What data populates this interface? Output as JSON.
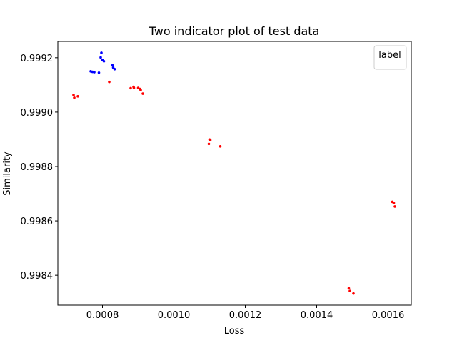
{
  "chart_data": {
    "type": "scatter",
    "title": "Two indicator plot of test data",
    "xlabel": "Loss",
    "ylabel": "Similarity",
    "xlim": [
      0.000675,
      0.001665
    ],
    "ylim": [
      0.99829,
      0.99926
    ],
    "xticks": [
      0.0008,
      0.001,
      0.0012,
      0.0014,
      0.0016
    ],
    "xtick_labels": [
      "0.0008",
      "0.0010",
      "0.0012",
      "0.0014",
      "0.0016"
    ],
    "yticks": [
      0.9984,
      0.9986,
      0.9988,
      0.999,
      0.9992
    ],
    "ytick_labels": [
      "0.9984",
      "0.9986",
      "0.9988",
      "0.9990",
      "0.9992"
    ],
    "grid": false,
    "legend": {
      "title": "label",
      "placement": "top-right",
      "entries": []
    },
    "series": [
      {
        "color": "#0000ff",
        "points": [
          {
            "x": 0.000797,
            "y": 0.999218
          },
          {
            "x": 0.000795,
            "y": 0.999201
          },
          {
            "x": 0.0008,
            "y": 0.999191
          },
          {
            "x": 0.000804,
            "y": 0.999187
          },
          {
            "x": 0.000828,
            "y": 0.999172
          },
          {
            "x": 0.00083,
            "y": 0.999164
          },
          {
            "x": 0.000834,
            "y": 0.999158
          },
          {
            "x": 0.000767,
            "y": 0.99915
          },
          {
            "x": 0.000772,
            "y": 0.999148
          },
          {
            "x": 0.000777,
            "y": 0.999147
          },
          {
            "x": 0.00079,
            "y": 0.999145
          }
        ]
      },
      {
        "color": "#ff0000",
        "points": [
          {
            "x": 0.000719,
            "y": 0.999063
          },
          {
            "x": 0.000721,
            "y": 0.999053
          },
          {
            "x": 0.000731,
            "y": 0.999058
          },
          {
            "x": 0.000819,
            "y": 0.999111
          },
          {
            "x": 0.000879,
            "y": 0.999088
          },
          {
            "x": 0.000887,
            "y": 0.999093
          },
          {
            "x": 0.000888,
            "y": 0.999089
          },
          {
            "x": 0.0009,
            "y": 0.999089
          },
          {
            "x": 0.000905,
            "y": 0.999085
          },
          {
            "x": 0.000907,
            "y": 0.999081
          },
          {
            "x": 0.000913,
            "y": 0.999068
          },
          {
            "x": 0.0011,
            "y": 0.998899
          },
          {
            "x": 0.001102,
            "y": 0.998897
          },
          {
            "x": 0.001098,
            "y": 0.998883
          },
          {
            "x": 0.00113,
            "y": 0.998874
          },
          {
            "x": 0.001612,
            "y": 0.99867
          },
          {
            "x": 0.001616,
            "y": 0.998666
          },
          {
            "x": 0.001619,
            "y": 0.998653
          },
          {
            "x": 0.00149,
            "y": 0.998352
          },
          {
            "x": 0.001493,
            "y": 0.998342
          },
          {
            "x": 0.001503,
            "y": 0.998333
          }
        ]
      }
    ]
  }
}
